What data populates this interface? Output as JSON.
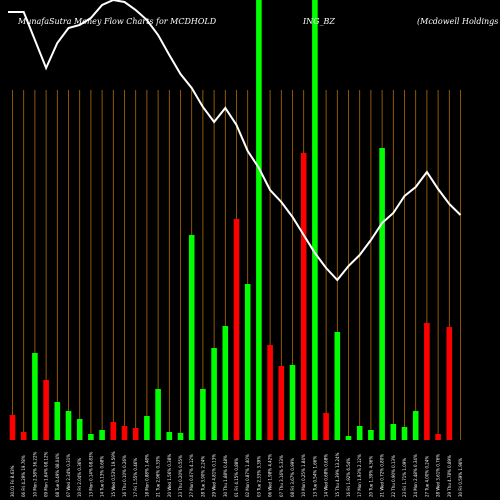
{
  "chart_data": {
    "type": "bar",
    "title_left": "MunafaSutra Money Flow  Charts for MCDHOLD",
    "title_mid": "ING_BZ",
    "title_right": "(Mcdowell Holdings Ltd",
    "colors": {
      "up": "#00ff00",
      "down": "#ff0000",
      "line": "#ffffff",
      "grid": "#b36b00",
      "background": "#000000"
    },
    "ylim": [
      0,
      440
    ],
    "categories": [
      "30.01 Fri 8.63%",
      "06 Fri 4.29% 19.78%",
      "10 Mon 2.58% 36.22%",
      "09 Mon 1.64% 08.12%",
      "08 Tue 0.49% 08.04%",
      "07 Wed 2.34% 0.31%",
      "10 Fri 2.04% 0.36%",
      "13 Mon 0.14% 08.83%",
      "14 Tue 0.13% 0.68%",
      "15 Wed 0.53% 19.59%",
      "16 Thu 0.10% 0.26%",
      "17 Fri 1.55% 0.46%",
      "18 Mon 0.88% 1.48%",
      "21 Tue 2.96% 0.33%",
      "20 Wed 1.56% 0.38%",
      "23 Thu 0.20% 0.55%",
      "27 Mon 0.07% 4.12%",
      "28 Tue 3.90% 2.24%",
      "29 Wed 4.81% 0.13%",
      "30 Thu 1.88% 0.48%",
      "01 Fri 4.15% 0.88%",
      "02 Mon 0.87% 1.40%",
      "03 Tue 2.33% 3.39%",
      "06 Wed 1.98% 4.42%",
      "07 Thu 3.16% 5.33%",
      "08 Fri 3.67% 0.99%",
      "10 Mon 0.25% 1.84%",
      "13 Tue 0.54% 1.66%",
      "14 Wed 0.68% 0.68%",
      "15 Thu 4.39% 13.24%",
      "16 Fri 1.92% 6.54%",
      "17 Mon 1.93% 2.12%",
      "20 Tue 1.39% 4.36%",
      "21 Wed 0.72% 0.80%",
      "22 Thu 0.90% 0.13%",
      "23 Fri 1.71% 1.09%",
      "24 Mon 2.48% 0.34%",
      "27 Tue 4.00% 0.24%",
      "28 Wed 3.61% 0.76%",
      "29 Thu 4.78% 0.89%",
      "30 Fri 0.59% 1.96%"
    ],
    "values": [
      25,
      8,
      87,
      60,
      38,
      29,
      21,
      6,
      10,
      18,
      14,
      12,
      24,
      51,
      8,
      7,
      205,
      51,
      92,
      114,
      221,
      156,
      440,
      95,
      74,
      75,
      287,
      440,
      27,
      108,
      4,
      14,
      10,
      292,
      16,
      13,
      29,
      117,
      6,
      113,
      0
    ],
    "directions": [
      "down",
      "down",
      "up",
      "down",
      "up",
      "up",
      "up",
      "up",
      "up",
      "down",
      "down",
      "down",
      "up",
      "up",
      "up",
      "up",
      "up",
      "up",
      "up",
      "up",
      "down",
      "up",
      "up",
      "down",
      "down",
      "up",
      "down",
      "up",
      "down",
      "up",
      "up",
      "up",
      "up",
      "up",
      "up",
      "up",
      "up",
      "down",
      "down",
      "down",
      "down"
    ],
    "line": [
      428,
      428,
      400,
      372,
      397,
      412,
      415,
      422,
      435,
      440,
      438,
      430,
      420,
      405,
      385,
      366,
      352,
      333,
      318,
      332,
      315,
      289,
      272,
      250,
      238,
      223,
      205,
      187,
      172,
      160,
      174,
      185,
      200,
      217,
      227,
      244,
      253,
      268,
      251,
      236,
      225
    ]
  }
}
